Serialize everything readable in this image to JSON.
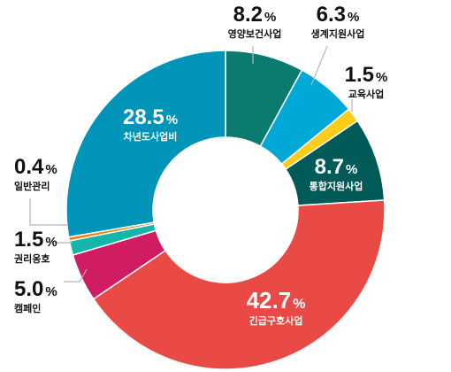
{
  "chart_data": {
    "type": "pie",
    "variant": "donut",
    "start": "top, clockwise",
    "categories": [
      "영양보건사업",
      "생계지원사업",
      "교육사업",
      "통합지원사업",
      "긴급구호사업",
      "캠페인",
      "권리옹호",
      "일반관리",
      "차년도사업비"
    ],
    "values": [
      8.2,
      6.3,
      1.5,
      8.7,
      42.7,
      5.0,
      1.5,
      0.4,
      28.5
    ],
    "display": [
      "8.2",
      "6.3",
      "1.5",
      "8.7",
      "42.7",
      "5.0",
      "1.5",
      "0.4",
      "28.5"
    ],
    "unit": "%",
    "colors": [
      "#0b7b6f",
      "#00a8d8",
      "#ffcc1a",
      "#005a58",
      "#ea4a45",
      "#d01c63",
      "#14b6ab",
      "#f97b10",
      "#0094b9"
    ]
  }
}
